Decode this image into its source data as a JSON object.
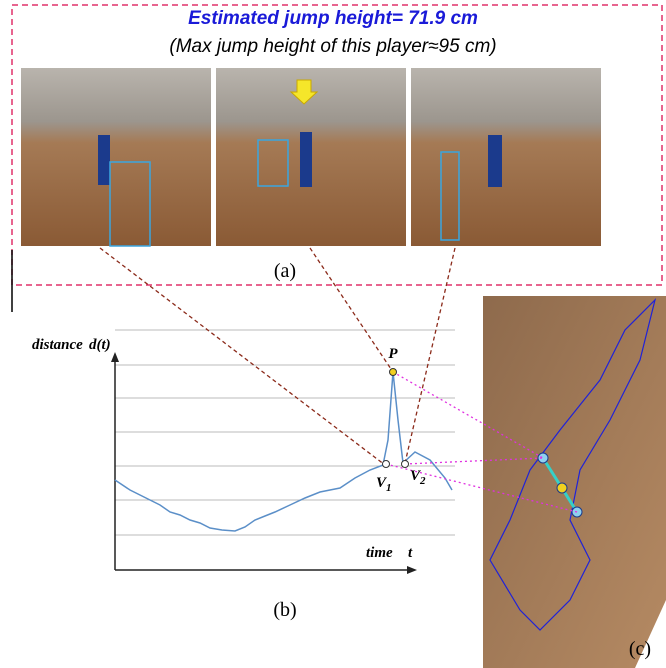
{
  "panel_a": {
    "title": "Estimated jump height= 71.9 cm",
    "subtitle": "(Max jump height of this player≈95 cm)",
    "label": "(a)"
  },
  "panel_b": {
    "y_label": "distance",
    "y_symbol": "d(t)",
    "x_label": "time",
    "x_symbol": "t",
    "peak_label": "P",
    "valley_1": {
      "letter": "V",
      "index": "1"
    },
    "valley_2": {
      "letter": "V",
      "index": "2"
    },
    "label": "(b)"
  },
  "panel_c": {
    "label": "(c)"
  }
}
